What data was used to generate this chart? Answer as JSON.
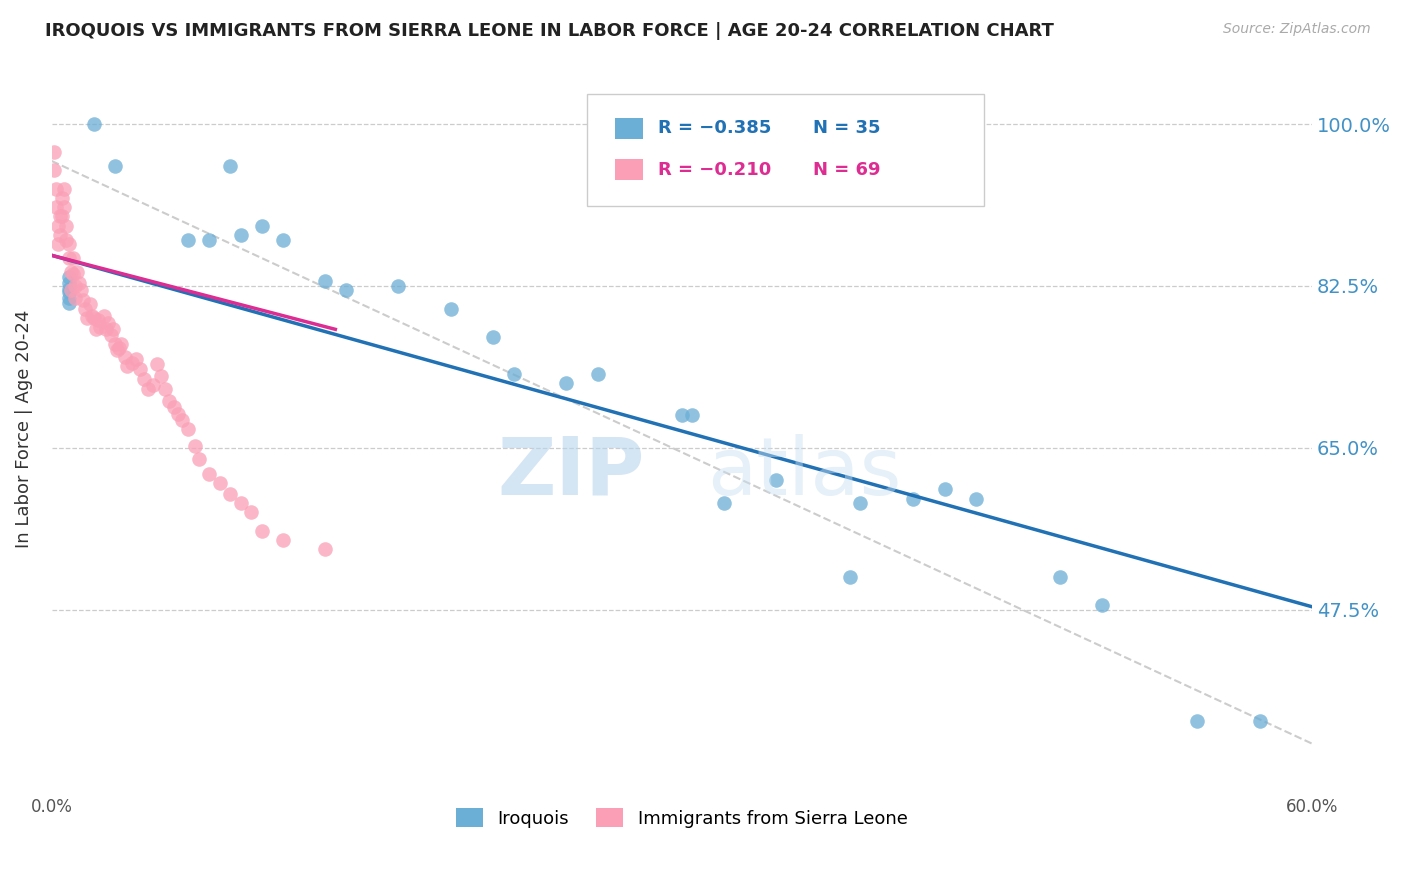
{
  "title": "IROQUOIS VS IMMIGRANTS FROM SIERRA LEONE IN LABOR FORCE | AGE 20-24 CORRELATION CHART",
  "source": "Source: ZipAtlas.com",
  "ylabel": "In Labor Force | Age 20-24",
  "yticks": [
    0.475,
    0.65,
    0.825,
    1.0
  ],
  "ytick_labels": [
    "47.5%",
    "65.0%",
    "82.5%",
    "100.0%"
  ],
  "xmin": 0.0,
  "xmax": 0.6,
  "ymin": 0.28,
  "ymax": 1.06,
  "legend_blue_r": "R = −0.385",
  "legend_blue_n": "N = 35",
  "legend_pink_r": "R = −0.210",
  "legend_pink_n": "N = 69",
  "legend_label_blue": "Iroquois",
  "legend_label_pink": "Immigrants from Sierra Leone",
  "color_blue": "#6baed6",
  "color_pink": "#fa9fb5",
  "color_line_blue": "#2171b5",
  "color_line_pink": "#de2d92",
  "color_axis_label": "#4292c6",
  "watermark_zip": "ZIP",
  "watermark_atlas": "atlas",
  "iroquois_x": [
    0.02,
    0.03,
    0.085,
    0.09,
    0.1,
    0.11,
    0.14,
    0.165,
    0.19,
    0.21,
    0.22,
    0.245,
    0.26,
    0.3,
    0.305,
    0.32,
    0.345,
    0.385,
    0.41,
    0.425,
    0.48,
    0.5,
    0.545,
    0.575,
    0.008,
    0.008,
    0.008,
    0.008,
    0.008,
    0.008,
    0.065,
    0.075,
    0.13,
    0.38,
    0.44
  ],
  "iroquois_y": [
    1.0,
    0.955,
    0.955,
    0.88,
    0.89,
    0.875,
    0.82,
    0.825,
    0.8,
    0.77,
    0.73,
    0.72,
    0.73,
    0.685,
    0.685,
    0.59,
    0.615,
    0.59,
    0.595,
    0.605,
    0.51,
    0.48,
    0.355,
    0.355,
    0.835,
    0.828,
    0.822,
    0.818,
    0.812,
    0.806,
    0.875,
    0.875,
    0.83,
    0.51,
    0.595
  ],
  "sierra_x": [
    0.001,
    0.001,
    0.002,
    0.002,
    0.003,
    0.003,
    0.004,
    0.004,
    0.005,
    0.005,
    0.006,
    0.006,
    0.007,
    0.007,
    0.008,
    0.008,
    0.009,
    0.009,
    0.01,
    0.01,
    0.011,
    0.011,
    0.012,
    0.013,
    0.014,
    0.015,
    0.016,
    0.017,
    0.018,
    0.019,
    0.02,
    0.021,
    0.022,
    0.023,
    0.025,
    0.026,
    0.027,
    0.028,
    0.029,
    0.03,
    0.031,
    0.032,
    0.033,
    0.035,
    0.036,
    0.038,
    0.04,
    0.042,
    0.044,
    0.046,
    0.048,
    0.05,
    0.052,
    0.054,
    0.056,
    0.058,
    0.06,
    0.062,
    0.065,
    0.068,
    0.07,
    0.075,
    0.08,
    0.085,
    0.09,
    0.095,
    0.1,
    0.11,
    0.13
  ],
  "sierra_y": [
    0.97,
    0.95,
    0.93,
    0.91,
    0.89,
    0.87,
    0.9,
    0.88,
    0.92,
    0.9,
    0.93,
    0.91,
    0.89,
    0.875,
    0.87,
    0.855,
    0.84,
    0.82,
    0.855,
    0.838,
    0.825,
    0.812,
    0.84,
    0.828,
    0.82,
    0.81,
    0.8,
    0.79,
    0.805,
    0.792,
    0.79,
    0.778,
    0.788,
    0.78,
    0.792,
    0.778,
    0.785,
    0.772,
    0.778,
    0.762,
    0.756,
    0.758,
    0.762,
    0.748,
    0.738,
    0.742,
    0.746,
    0.735,
    0.724,
    0.713,
    0.718,
    0.74,
    0.728,
    0.714,
    0.7,
    0.694,
    0.686,
    0.68,
    0.67,
    0.652,
    0.638,
    0.622,
    0.612,
    0.6,
    0.59,
    0.58,
    0.56,
    0.55,
    0.54
  ],
  "blue_line_x0": 0.0,
  "blue_line_x1": 0.6,
  "blue_line_y0": 0.858,
  "blue_line_y1": 0.478,
  "pink_line_x0": 0.0,
  "pink_line_x1": 0.135,
  "pink_line_y0": 0.858,
  "pink_line_y1": 0.778,
  "dash_line_x0": 0.0,
  "dash_line_x1": 0.6,
  "dash_line_y0": 0.96,
  "dash_line_y1": 0.33
}
